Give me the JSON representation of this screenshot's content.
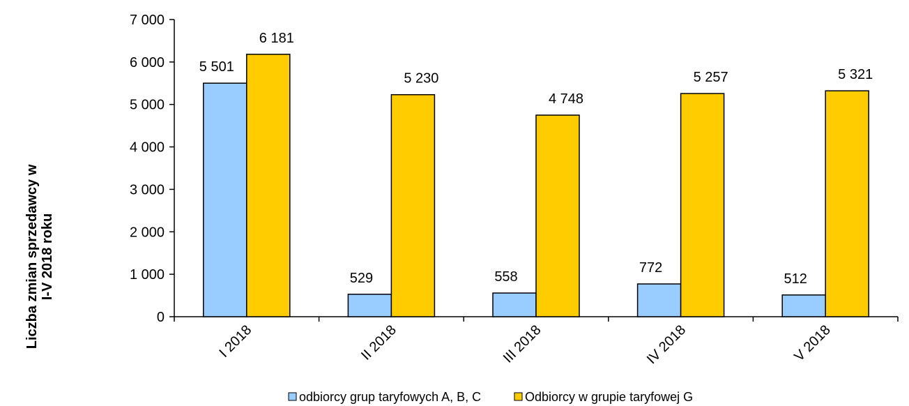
{
  "chart_data": {
    "type": "bar",
    "ylabel_lines": [
      "Liczba zmian sprzedawcy w",
      "I-V 2018 roku"
    ],
    "categories": [
      "I 2018",
      "II 2018",
      "III 2018",
      "IV 2018",
      "V 2018"
    ],
    "series": [
      {
        "name": "odbiorcy grup taryfowych A, B, C",
        "values": [
          5501,
          529,
          558,
          772,
          512
        ],
        "labels": [
          "5 501",
          "529",
          "558",
          "772",
          "512"
        ],
        "color": "#99ccff"
      },
      {
        "name": "Odbiorcy w grupie taryfowej G",
        "values": [
          6181,
          5230,
          4748,
          5257,
          5321
        ],
        "labels": [
          "6 181",
          "5 230",
          "4 748",
          "5 257",
          "5 321"
        ],
        "color": "#ffcc00"
      }
    ],
    "yticks": [
      {
        "value": 0,
        "label": "0"
      },
      {
        "value": 1000,
        "label": "1 000"
      },
      {
        "value": 2000,
        "label": "2 000"
      },
      {
        "value": 3000,
        "label": "3 000"
      },
      {
        "value": 4000,
        "label": "4 000"
      },
      {
        "value": 5000,
        "label": "5 000"
      },
      {
        "value": 6000,
        "label": "6 000"
      },
      {
        "value": 7000,
        "label": "7 000"
      }
    ],
    "ylim": [
      0,
      7000
    ],
    "grid": false,
    "legend_position": "bottom"
  }
}
